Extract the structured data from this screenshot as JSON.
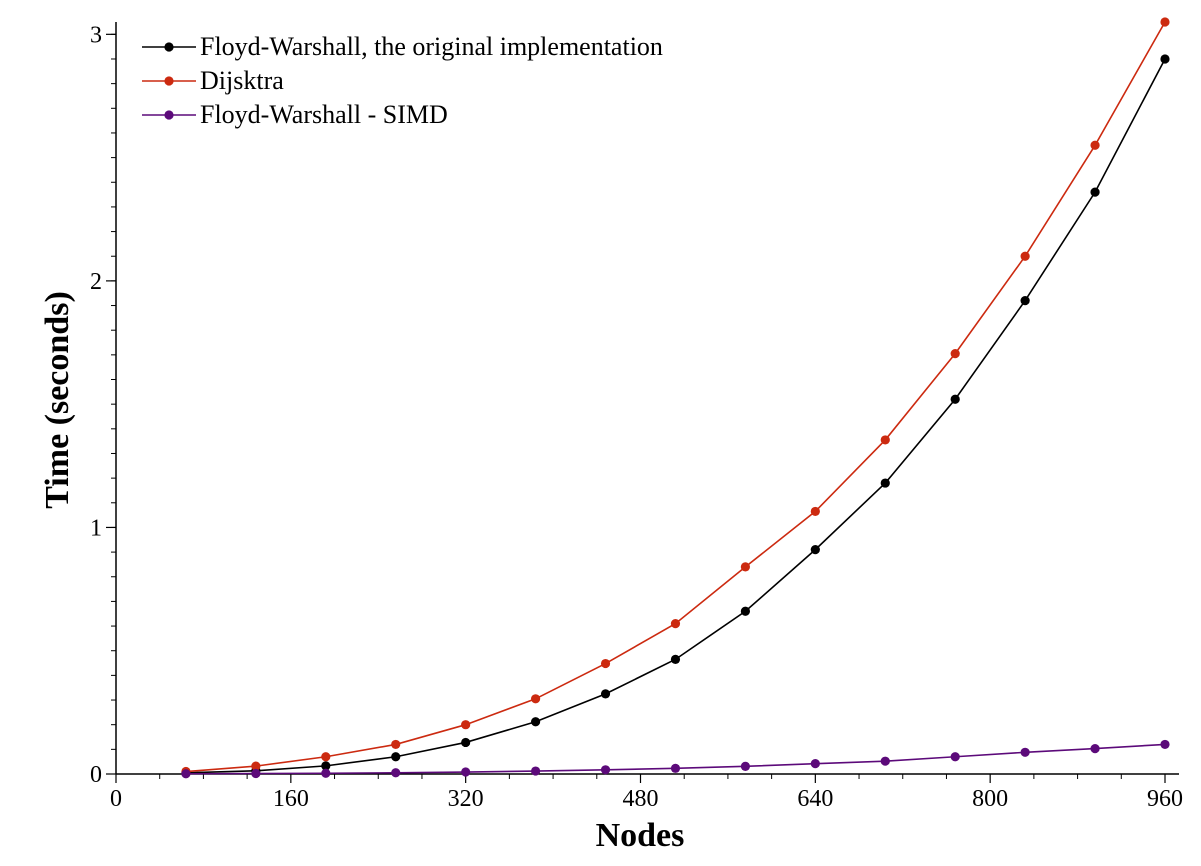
{
  "chart_data": {
    "type": "line",
    "xlabel": "Nodes",
    "ylabel": "Time (seconds)",
    "xlim": [
      0,
      960
    ],
    "ylim": [
      0,
      3.05
    ],
    "x_ticks": [
      0,
      160,
      320,
      480,
      640,
      800,
      960
    ],
    "y_ticks": [
      0,
      1,
      2,
      3
    ],
    "y_minor_step": 0.1,
    "grid": false,
    "legend_position": "top-left",
    "x": [
      64,
      128,
      192,
      256,
      320,
      384,
      448,
      512,
      576,
      640,
      704,
      768,
      832,
      896,
      960
    ],
    "series": [
      {
        "name": "Floyd-Warshall, the original implementation",
        "color": "#000000",
        "values": [
          0.005,
          0.013,
          0.033,
          0.07,
          0.128,
          0.212,
          0.325,
          0.465,
          0.66,
          0.91,
          1.18,
          1.52,
          1.92,
          2.36,
          2.9
        ]
      },
      {
        "name": "Dijsktra",
        "color": "#cc2a10",
        "values": [
          0.01,
          0.032,
          0.07,
          0.12,
          0.2,
          0.305,
          0.448,
          0.61,
          0.84,
          1.065,
          1.355,
          1.705,
          2.1,
          2.55,
          3.05
        ]
      },
      {
        "name": "Floyd-Warshall - SIMD",
        "color": "#5c0a7a",
        "values": [
          0.001,
          0.002,
          0.003,
          0.005,
          0.008,
          0.012,
          0.017,
          0.023,
          0.031,
          0.042,
          0.052,
          0.07,
          0.088,
          0.103,
          0.12
        ]
      }
    ]
  }
}
